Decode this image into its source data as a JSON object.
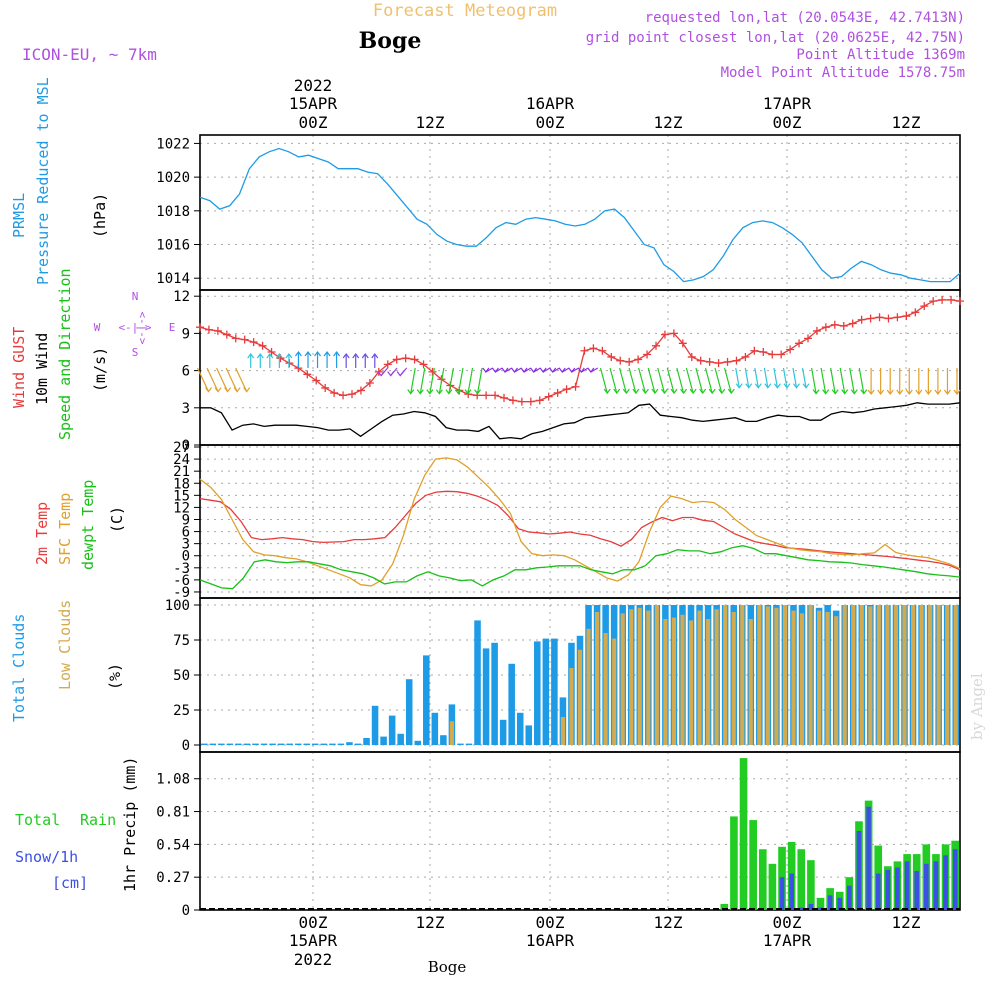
{
  "header": {
    "title": "Forecast Meteogram",
    "location": "Boge",
    "model": "ICON-EU, ~ 7km",
    "requested": "requested lon,lat (20.0543E, 42.7413N)",
    "grid_point": "grid point closest lon,lat (20.0625E, 42.75N)",
    "point_altitude": "Point Altitude 1369m",
    "model_altitude": "Model Point Altitude 1578.75m",
    "watermark": "by Angel",
    "footer_location": "Boge"
  },
  "time_axis": {
    "ticks": [
      {
        "label": "00Z",
        "date": "15APR",
        "year": "2022"
      },
      {
        "label": "12Z",
        "date": "",
        "year": ""
      },
      {
        "label": "00Z",
        "date": "16APR",
        "year": ""
      },
      {
        "label": "12Z",
        "date": "",
        "year": ""
      },
      {
        "label": "00Z",
        "date": "17APR",
        "year": ""
      },
      {
        "label": "12Z",
        "date": "",
        "year": ""
      }
    ],
    "start": "2022-04-14T13:00Z",
    "end": "2022-04-17T17:00Z"
  },
  "colors": {
    "pressure": "#1e9be6",
    "gust": "#e63c3c",
    "wind": "#000000",
    "direction": "#18c018",
    "t2m": "#e63c3c",
    "sfc": "#e0a02a",
    "dewpt": "#18c018",
    "total_clouds": "#1e9be6",
    "low_clouds": "#d2aa50",
    "rain": "#22cc22",
    "snow": "#3c50e6",
    "labels_purple": "#b050e0",
    "title_orange": "#f0c070"
  },
  "chart_data": [
    {
      "type": "line",
      "panel": "pressure",
      "ylabel": [
        "PRMSL",
        "Pressure Reduced to MSL",
        "(hPa)"
      ],
      "yticks": [
        1014,
        1016,
        1018,
        1020,
        1022
      ],
      "ylim": [
        1013.3,
        1022.5
      ],
      "series": [
        {
          "name": "PRMSL",
          "color": "pressure",
          "values": [
            1018.8,
            1018.6,
            1018.1,
            1018.3,
            1019.0,
            1020.5,
            1021.2,
            1021.5,
            1021.7,
            1021.5,
            1021.2,
            1021.3,
            1021.1,
            1020.9,
            1020.5,
            1020.5,
            1020.5,
            1020.3,
            1020.2,
            1019.6,
            1018.9,
            1018.2,
            1017.5,
            1017.2,
            1016.6,
            1016.2,
            1016.0,
            1015.9,
            1015.9,
            1016.4,
            1017.0,
            1017.3,
            1017.2,
            1017.5,
            1017.6,
            1017.5,
            1017.4,
            1017.2,
            1017.1,
            1017.2,
            1017.5,
            1018.0,
            1018.1,
            1017.6,
            1016.8,
            1016.0,
            1015.8,
            1014.8,
            1014.4,
            1013.8,
            1013.9,
            1014.1,
            1014.5,
            1015.3,
            1016.3,
            1017.0,
            1017.3,
            1017.4,
            1017.3,
            1017.0,
            1016.6,
            1016.1,
            1015.3,
            1014.5,
            1014.0,
            1014.1,
            1014.6,
            1015.0,
            1014.8,
            1014.5,
            1014.3,
            1014.2,
            1014.0,
            1013.9,
            1013.8,
            1013.8,
            1013.8,
            1014.3
          ]
        }
      ]
    },
    {
      "type": "line",
      "panel": "wind",
      "ylabel": [
        "Wind GUST",
        "10m Wind",
        "Speed and Direction",
        "(m/s)"
      ],
      "yticks": [
        0,
        3,
        6,
        9,
        12
      ],
      "ylim": [
        0,
        12.5
      ],
      "compass": {
        "n": "N",
        "s": "S",
        "w": "W",
        "e": "E",
        "arrows": "<-|->"
      },
      "series": [
        {
          "name": "Wind GUST",
          "color": "gust",
          "marker": "+",
          "values": [
            9.5,
            9.3,
            9.2,
            8.9,
            8.6,
            8.5,
            8.3,
            8.0,
            7.5,
            7.0,
            6.6,
            6.2,
            5.7,
            5.2,
            4.6,
            4.2,
            4.0,
            4.1,
            4.4,
            5.0,
            5.9,
            6.5,
            6.9,
            7.0,
            6.9,
            6.5,
            5.9,
            5.3,
            4.8,
            4.4,
            4.1,
            4.0,
            4.0,
            4.0,
            3.8,
            3.6,
            3.5,
            3.5,
            3.6,
            3.9,
            4.2,
            4.5,
            4.7,
            7.6,
            7.8,
            7.6,
            7.1,
            6.8,
            6.7,
            6.9,
            7.3,
            8.0,
            8.9,
            9.0,
            8.2,
            7.1,
            6.8,
            6.7,
            6.6,
            6.7,
            6.8,
            7.1,
            7.6,
            7.5,
            7.3,
            7.3,
            7.7,
            8.2,
            8.6,
            9.2,
            9.5,
            9.7,
            9.6,
            9.8,
            10.1,
            10.2,
            10.3,
            10.2,
            10.3,
            10.4,
            10.7,
            11.2,
            11.6,
            11.7,
            11.7,
            11.6
          ]
        },
        {
          "name": "10m Wind",
          "color": "wind",
          "values": [
            3.0,
            3.0,
            2.6,
            1.2,
            1.6,
            1.7,
            1.5,
            1.6,
            1.6,
            1.6,
            1.5,
            1.4,
            1.2,
            1.2,
            1.3,
            0.7,
            1.3,
            1.9,
            2.4,
            2.5,
            2.7,
            2.6,
            2.3,
            1.4,
            1.2,
            1.2,
            1.1,
            1.5,
            0.5,
            0.6,
            0.5,
            0.9,
            1.1,
            1.4,
            1.7,
            1.8,
            2.2,
            2.3,
            2.4,
            2.5,
            2.6,
            3.2,
            3.3,
            2.4,
            2.3,
            2.2,
            2.0,
            1.9,
            2.0,
            2.1,
            2.2,
            1.9,
            1.9,
            2.2,
            2.4,
            2.3,
            2.3,
            2.0,
            2.0,
            2.5,
            2.7,
            2.6,
            2.7,
            2.9,
            3.0,
            3.1,
            3.2,
            3.4,
            3.3,
            3.3,
            3.3,
            3.4
          ]
        }
      ],
      "direction_arrows": {
        "color": "direction",
        "count": 80
      }
    },
    {
      "type": "line",
      "panel": "temperature",
      "ylabel": [
        "2m Temp",
        "SFC Temp",
        "dewpt Temp",
        "(C)"
      ],
      "yticks": [
        -9,
        -6,
        -3,
        0,
        3,
        6,
        9,
        12,
        15,
        18,
        21,
        24,
        27
      ],
      "ylim": [
        -10.5,
        27.5
      ],
      "series": [
        {
          "name": "2m Temp",
          "color": "t2m",
          "values": [
            14.2,
            13.8,
            13.4,
            11.5,
            8.5,
            4.5,
            4.0,
            4.2,
            4.5,
            4.2,
            4.0,
            3.5,
            3.3,
            3.4,
            3.5,
            4.0,
            4.0,
            4.2,
            4.5,
            7.0,
            10.0,
            13.0,
            15.0,
            15.8,
            16.0,
            15.9,
            15.5,
            14.8,
            13.8,
            12.5,
            10.0,
            6.7,
            5.9,
            5.7,
            5.4,
            5.6,
            5.9,
            5.4,
            5.1,
            4.2,
            3.5,
            2.4,
            4.0,
            7.0,
            8.4,
            9.5,
            8.7,
            9.5,
            9.5,
            8.8,
            8.5,
            7.0,
            5.5,
            4.5,
            3.5,
            3.0,
            2.6,
            2.0,
            1.8,
            1.6,
            1.3,
            1.0,
            0.8,
            0.6,
            0.4,
            0.2,
            0.0,
            -0.2,
            -0.5,
            -0.8,
            -1.1,
            -1.4,
            -1.8,
            -2.4,
            -3.5
          ]
        },
        {
          "name": "SFC Temp",
          "color": "sfc",
          "values": [
            19.0,
            17.0,
            14.0,
            9.0,
            4.0,
            1.0,
            0.2,
            0.0,
            -0.5,
            -0.8,
            -1.5,
            -2.5,
            -3.5,
            -4.5,
            -5.5,
            -7.2,
            -7.5,
            -6.0,
            -2.0,
            5.0,
            14.0,
            20.0,
            24.0,
            24.3,
            23.8,
            22.0,
            19.5,
            17.0,
            14.0,
            10.5,
            3.5,
            0.5,
            0.0,
            0.2,
            0.0,
            -1.0,
            -2.5,
            -4.0,
            -5.5,
            -6.3,
            -4.8,
            -1.5,
            6.0,
            12.0,
            14.8,
            14.2,
            13.2,
            13.5,
            13.2,
            11.5,
            9.0,
            7.0,
            5.0,
            4.0,
            3.0,
            2.0,
            1.5,
            1.2,
            1.0,
            0.5,
            0.3,
            0.2,
            0.5,
            0.7,
            2.8,
            0.8,
            0.2,
            -0.2,
            -0.5,
            -1.2,
            -2.0,
            -3.2
          ]
        },
        {
          "name": "dewpt Temp",
          "color": "dewpt",
          "values": [
            -6.0,
            -7.0,
            -8.0,
            -8.2,
            -5.5,
            -1.5,
            -1.0,
            -1.5,
            -1.7,
            -1.5,
            -1.5,
            -2.0,
            -2.5,
            -3.5,
            -4.0,
            -4.5,
            -5.5,
            -7.0,
            -6.5,
            -6.5,
            -5.0,
            -4.0,
            -5.0,
            -5.5,
            -6.2,
            -6.0,
            -7.5,
            -6.0,
            -5.0,
            -3.5,
            -3.5,
            -3.0,
            -2.8,
            -2.5,
            -2.5,
            -2.5,
            -3.5,
            -4.0,
            -4.5,
            -3.5,
            -3.5,
            -2.5,
            0.0,
            0.5,
            1.5,
            1.2,
            1.2,
            0.5,
            1.0,
            2.0,
            2.5,
            1.8,
            0.5,
            0.5,
            0.0,
            -0.5,
            -1.0,
            -1.2,
            -1.5,
            -1.6,
            -1.8,
            -2.2,
            -2.5,
            -2.8,
            -3.2,
            -3.6,
            -4.0,
            -4.5,
            -4.8,
            -5.0,
            -5.3
          ]
        }
      ]
    },
    {
      "type": "bar",
      "panel": "clouds",
      "ylabel": [
        "Total Clouds",
        "Low Clouds",
        "(%)"
      ],
      "yticks": [
        0,
        25,
        50,
        75,
        100
      ],
      "ylim": [
        -5,
        105
      ],
      "series": [
        {
          "name": "Total Clouds",
          "color": "total_clouds",
          "values": [
            1,
            1,
            1,
            1,
            1,
            1,
            1,
            1,
            1,
            1,
            1,
            1,
            1,
            1,
            1,
            1,
            1,
            2,
            1,
            5,
            28,
            6,
            21,
            8,
            47,
            3,
            64,
            23,
            7,
            29,
            1,
            1,
            89,
            69,
            73,
            18,
            58,
            23,
            14,
            74,
            76,
            76,
            34,
            73,
            78,
            100,
            100,
            100,
            100,
            100,
            100,
            100,
            100,
            100,
            100,
            100,
            100,
            100,
            100,
            100,
            100,
            100,
            100,
            100,
            100,
            100,
            100,
            100,
            100,
            100,
            100,
            100,
            98,
            100,
            96,
            100,
            100,
            100,
            100,
            100,
            100,
            100,
            100,
            100,
            100,
            100,
            100,
            100,
            100
          ]
        },
        {
          "name": "Low Clouds",
          "color": "low_clouds",
          "values": [
            0,
            0,
            0,
            0,
            0,
            0,
            0,
            0,
            0,
            0,
            0,
            0,
            0,
            0,
            0,
            0,
            0,
            0,
            0,
            0,
            0,
            0,
            0,
            0,
            0,
            0,
            0,
            0,
            0,
            17,
            0,
            0,
            0,
            0,
            0,
            0,
            0,
            0,
            0,
            0,
            0,
            0,
            20,
            55,
            68,
            83,
            95,
            80,
            76,
            94,
            97,
            98,
            96,
            100,
            90,
            91,
            93,
            89,
            96,
            90,
            97,
            100,
            95,
            100,
            90,
            100,
            99,
            98,
            100,
            96,
            94,
            100,
            96,
            95,
            92,
            100,
            100,
            100,
            99,
            100,
            100,
            100,
            100,
            100,
            100,
            100,
            100,
            100,
            100
          ]
        }
      ]
    },
    {
      "type": "bar",
      "panel": "precip",
      "ylabel": [
        "Total",
        "Rain",
        "Snow/1h",
        "[cm]",
        "1hr Precip (mm)"
      ],
      "yticks": [
        "0",
        "0.27",
        "0.54",
        "0.81",
        "1.08"
      ],
      "ylim": [
        0,
        1.3
      ],
      "series": [
        {
          "name": "Total Rain",
          "color": "rain",
          "values": [
            0,
            0,
            0,
            0,
            0,
            0,
            0,
            0,
            0,
            0,
            0,
            0,
            0,
            0,
            0,
            0,
            0,
            0,
            0,
            0,
            0,
            0,
            0,
            0,
            0,
            0,
            0,
            0,
            0,
            0,
            0,
            0,
            0,
            0,
            0,
            0,
            0,
            0,
            0,
            0,
            0,
            0,
            0,
            0,
            0,
            0,
            0,
            0,
            0,
            0,
            0,
            0,
            0,
            0,
            0.05,
            0.77,
            1.25,
            0.74,
            0.5,
            0.38,
            0.52,
            0.56,
            0.5,
            0.41,
            0.1,
            0.18,
            0.15,
            0.27,
            0.73,
            0.9,
            0.53,
            0.36,
            0.4,
            0.46,
            0.46,
            0.54,
            0.46,
            0.54,
            0.57
          ]
        },
        {
          "name": "Snow/1h",
          "color": "snow",
          "values": [
            0,
            0,
            0,
            0,
            0,
            0,
            0,
            0,
            0,
            0,
            0,
            0,
            0,
            0,
            0,
            0,
            0,
            0,
            0,
            0,
            0,
            0,
            0,
            0,
            0,
            0,
            0,
            0,
            0,
            0,
            0,
            0,
            0,
            0,
            0,
            0,
            0,
            0,
            0,
            0,
            0,
            0,
            0,
            0,
            0,
            0,
            0,
            0,
            0,
            0,
            0,
            0,
            0,
            0,
            0,
            0,
            0,
            0,
            0,
            0,
            0.27,
            0.3,
            0.02,
            0.05,
            0.02,
            0.12,
            0.1,
            0.2,
            0.65,
            0.85,
            0.3,
            0.33,
            0.35,
            0.4,
            0.32,
            0.38,
            0.4,
            0.45,
            0.5
          ]
        }
      ]
    }
  ]
}
